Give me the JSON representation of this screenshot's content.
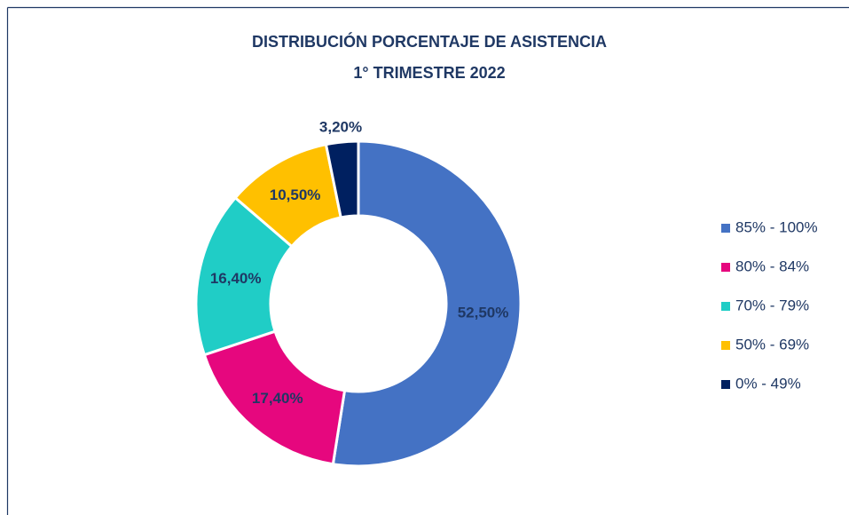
{
  "chart_data": {
    "type": "donut",
    "title": "DISTRIBUCIÓN PORCENTAJE DE ASISTENCIA",
    "subtitle": "1° TRIMESTRE 2022",
    "categories": [
      "85% - 100%",
      "80% - 84%",
      "70% - 79%",
      "50% - 69%",
      "0% - 49%"
    ],
    "values": [
      52.5,
      17.4,
      16.4,
      10.5,
      3.2
    ],
    "value_labels": [
      "52,50%",
      "17,40%",
      "16,40%",
      "10,50%",
      "3,20%"
    ],
    "colors": [
      "#4472c4",
      "#e6077e",
      "#20cdc6",
      "#ffc000",
      "#002060"
    ],
    "legend": "right"
  }
}
